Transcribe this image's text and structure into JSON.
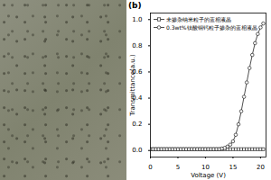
{
  "chart_data": {
    "type": "line",
    "title": "(b)",
    "x_label": "Voltage (V)",
    "y_label": "Transmittance(a.u.)",
    "x": [
      0,
      0.5,
      1,
      1.5,
      2,
      2.5,
      3,
      3.5,
      4,
      4.5,
      5,
      5.5,
      6,
      6.5,
      7,
      7.5,
      8,
      8.5,
      9,
      9.5,
      10,
      10.5,
      11,
      11.5,
      12,
      12.5,
      13,
      13.5,
      14,
      14.5,
      15,
      15.5,
      16,
      16.5,
      17,
      17.5,
      18,
      18.5,
      19,
      19.5,
      20,
      20.5
    ],
    "series": [
      {
        "name": "未掺杂纳米粒子的蓝相液晶",
        "color": "#222222",
        "marker": "square",
        "line_style": "solid",
        "values": [
          0.01,
          0.01,
          0.01,
          0.01,
          0.01,
          0.01,
          0.01,
          0.01,
          0.01,
          0.01,
          0.01,
          0.01,
          0.01,
          0.01,
          0.01,
          0.01,
          0.01,
          0.01,
          0.01,
          0.01,
          0.01,
          0.01,
          0.01,
          0.01,
          0.01,
          0.01,
          0.01,
          0.01,
          0.01,
          0.01,
          0.01,
          0.01,
          0.01,
          0.01,
          0.01,
          0.01,
          0.01,
          0.01,
          0.01,
          0.01,
          0.01,
          0.01
        ]
      },
      {
        "name": "0.3wt%钛酸铜钙粒子掺杂的蓝相液晶",
        "color": "#222222",
        "marker": "circle",
        "line_style": "solid",
        "values": [
          0.01,
          0.01,
          0.01,
          0.01,
          0.01,
          0.01,
          0.01,
          0.01,
          0.01,
          0.01,
          0.01,
          0.01,
          0.01,
          0.01,
          0.01,
          0.01,
          0.01,
          0.01,
          0.01,
          0.01,
          0.01,
          0.01,
          0.01,
          0.01,
          0.01,
          0.01,
          0.015,
          0.02,
          0.03,
          0.045,
          0.07,
          0.12,
          0.2,
          0.3,
          0.41,
          0.52,
          0.63,
          0.73,
          0.82,
          0.89,
          0.94,
          0.97
        ]
      }
    ],
    "xlim": [
      0,
      21
    ],
    "xticks": [
      0,
      5,
      10,
      15,
      20
    ],
    "ylim": [
      -0.05,
      1.05
    ],
    "yticks": [
      {
        "value": 0,
        "label": "0.0"
      },
      0.2,
      0.4,
      0.6,
      0.8,
      {
        "value": 1,
        "label": "1.0"
      }
    ],
    "grid": false,
    "legend": "top-left"
  }
}
